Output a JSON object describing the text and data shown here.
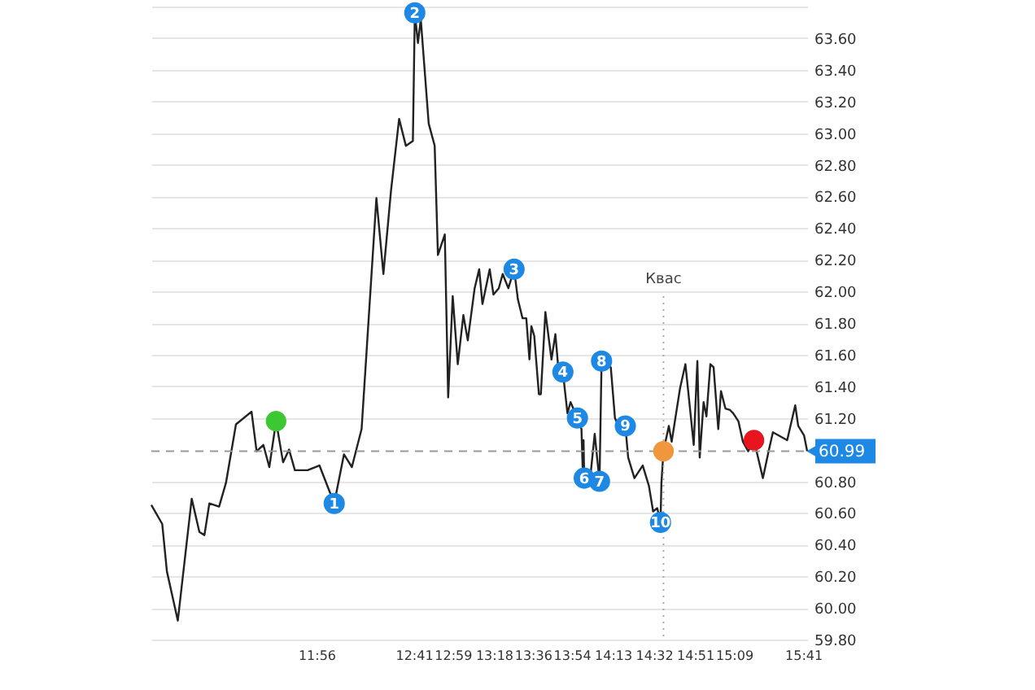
{
  "chart_data": {
    "type": "line",
    "xlim": [
      10.661,
      15.714
    ],
    "ylim": [
      59.8,
      63.8
    ],
    "xticks": [
      {
        "value": 11.9333,
        "label": "11:56"
      },
      {
        "value": 12.6833,
        "label": "12:41"
      },
      {
        "value": 12.9833,
        "label": "12:59"
      },
      {
        "value": 13.3,
        "label": "13:18"
      },
      {
        "value": 13.6,
        "label": "13:36"
      },
      {
        "value": 13.9,
        "label": "13:54"
      },
      {
        "value": 14.2167,
        "label": "14:13"
      },
      {
        "value": 14.5333,
        "label": "14:32"
      },
      {
        "value": 14.85,
        "label": "14:51"
      },
      {
        "value": 15.15,
        "label": "15:09"
      },
      {
        "value": 15.6833,
        "label": "15:41"
      }
    ],
    "yticks": [
      {
        "value": 59.8,
        "label": "59.80"
      },
      {
        "value": 60,
        "label": "60.00"
      },
      {
        "value": 60.2,
        "label": "60.20"
      },
      {
        "value": 60.4,
        "label": "60.40"
      },
      {
        "value": 60.6,
        "label": "60.60"
      },
      {
        "value": 60.8,
        "label": "60.80"
      },
      {
        "value": 61.2,
        "label": "61.20"
      },
      {
        "value": 61.4,
        "label": "61.40"
      },
      {
        "value": 61.6,
        "label": "61.60"
      },
      {
        "value": 61.8,
        "label": "61.80"
      },
      {
        "value": 62,
        "label": "62.00"
      },
      {
        "value": 62.2,
        "label": "62.20"
      },
      {
        "value": 62.4,
        "label": "62.40"
      },
      {
        "value": 62.6,
        "label": "62.60"
      },
      {
        "value": 62.8,
        "label": "62.80"
      },
      {
        "value": 63,
        "label": "63.00"
      },
      {
        "value": 63.2,
        "label": "63.20"
      },
      {
        "value": 63.4,
        "label": "63.40"
      },
      {
        "value": 63.6,
        "label": "63.60"
      },
      {
        "value": 63.8,
        "label": null
      }
    ],
    "grid": "y",
    "series": [
      {
        "color": "#222222",
        "x": [
          10.661,
          10.745,
          10.781,
          10.865,
          10.972,
          11.031,
          11.07,
          11.108,
          11.183,
          11.236,
          11.313,
          11.433,
          11.472,
          11.524,
          11.57,
          11.622,
          11.676,
          11.722,
          11.767,
          11.865,
          11.956,
          12.07,
          12.145,
          12.206,
          12.281,
          12.395,
          12.449,
          12.508,
          12.57,
          12.622,
          12.676,
          12.691,
          12.715,
          12.737,
          12.798,
          12.844,
          12.869,
          12.922,
          12.948,
          12.983,
          13.022,
          13.065,
          13.099,
          13.152,
          13.187,
          13.212,
          13.268,
          13.297,
          13.338,
          13.368,
          13.412,
          13.456,
          13.485,
          13.521,
          13.55,
          13.574,
          13.589,
          13.611,
          13.647,
          13.662,
          13.697,
          13.744,
          13.774,
          13.794,
          13.832,
          13.867,
          13.891,
          13.944,
          13.975,
          13.984,
          13.991,
          13.996,
          14.046,
          14.077,
          14.114,
          14.13,
          14.201,
          14.233,
          14.287,
          14.313,
          14.335,
          14.383,
          14.447,
          14.495,
          14.527,
          14.559,
          14.584,
          14.591,
          14.607,
          14.648,
          14.67,
          14.735,
          14.776,
          14.84,
          14.868,
          14.886,
          14.916,
          14.938,
          14.968,
          14.993,
          15.029,
          15.05,
          15.084,
          15.12,
          15.144,
          15.184,
          15.219,
          15.26,
          15.304,
          15.373,
          15.417,
          15.45,
          15.56,
          15.622,
          15.645,
          15.69,
          15.714
        ],
        "values": [
          60.65,
          60.53,
          60.23,
          59.92,
          60.69,
          60.48,
          60.46,
          60.66,
          60.64,
          60.79,
          61.16,
          61.24,
          60.99,
          61.03,
          60.89,
          61.18,
          60.92,
          61.0,
          60.87,
          60.87,
          60.9,
          60.66,
          60.97,
          60.89,
          61.13,
          62.59,
          62.11,
          62.64,
          63.09,
          62.92,
          62.95,
          63.76,
          63.57,
          63.72,
          63.06,
          62.92,
          62.23,
          62.36,
          61.33,
          61.97,
          61.54,
          61.85,
          61.69,
          62.02,
          62.14,
          61.92,
          62.14,
          61.98,
          62.02,
          62.11,
          62.02,
          62.14,
          61.95,
          61.83,
          61.83,
          61.57,
          61.78,
          61.72,
          61.35,
          61.35,
          61.87,
          61.57,
          61.73,
          61.54,
          61.49,
          61.23,
          61.3,
          61.2,
          61.13,
          60.89,
          61.06,
          60.82,
          60.85,
          61.1,
          60.8,
          61.56,
          61.52,
          61.2,
          61.1,
          61.15,
          60.95,
          60.82,
          60.9,
          60.77,
          60.61,
          60.63,
          60.54,
          60.79,
          60.99,
          61.15,
          61.05,
          61.39,
          61.54,
          61.03,
          61.56,
          60.95,
          61.3,
          61.21,
          61.54,
          61.52,
          61.13,
          61.37,
          61.26,
          61.25,
          61.23,
          61.18,
          61.05,
          60.99,
          61.06,
          60.82,
          60.99,
          61.11,
          61.06,
          61.28,
          61.15,
          61.09,
          60.99
        ]
      },
      {
        "type": "scatter",
        "x": [
          11.622,
          14.607,
          15.304
        ],
        "values": [
          61.18,
          60.99,
          61.06
        ],
        "colors": [
          "#3cc832",
          "#f0963c",
          "#e8141e"
        ]
      }
    ],
    "annotations": [
      {
        "text": "1",
        "x": 12.07,
        "y": 60.66
      },
      {
        "text": "2",
        "x": 12.691,
        "y": 63.76
      },
      {
        "text": "3",
        "x": 13.456,
        "y": 62.14
      },
      {
        "text": "4",
        "x": 13.832,
        "y": 61.49
      },
      {
        "text": "5",
        "x": 13.944,
        "y": 61.2
      },
      {
        "text": "6",
        "x": 13.996,
        "y": 60.82
      },
      {
        "text": "7",
        "x": 14.114,
        "y": 60.8
      },
      {
        "text": "8",
        "x": 14.13,
        "y": 61.56
      },
      {
        "text": "9",
        "x": 14.313,
        "y": 61.15
      },
      {
        "text": "10",
        "x": 14.584,
        "y": 60.54
      }
    ],
    "ref_lines": [
      {
        "axis": "y",
        "value": 60.99,
        "label": "60.99",
        "color": "#999999",
        "line_style": "dashed"
      },
      {
        "axis": "x",
        "value": 14.607,
        "label": "Квас",
        "color": "#aaaaaa",
        "line_style": "dotted"
      }
    ]
  }
}
